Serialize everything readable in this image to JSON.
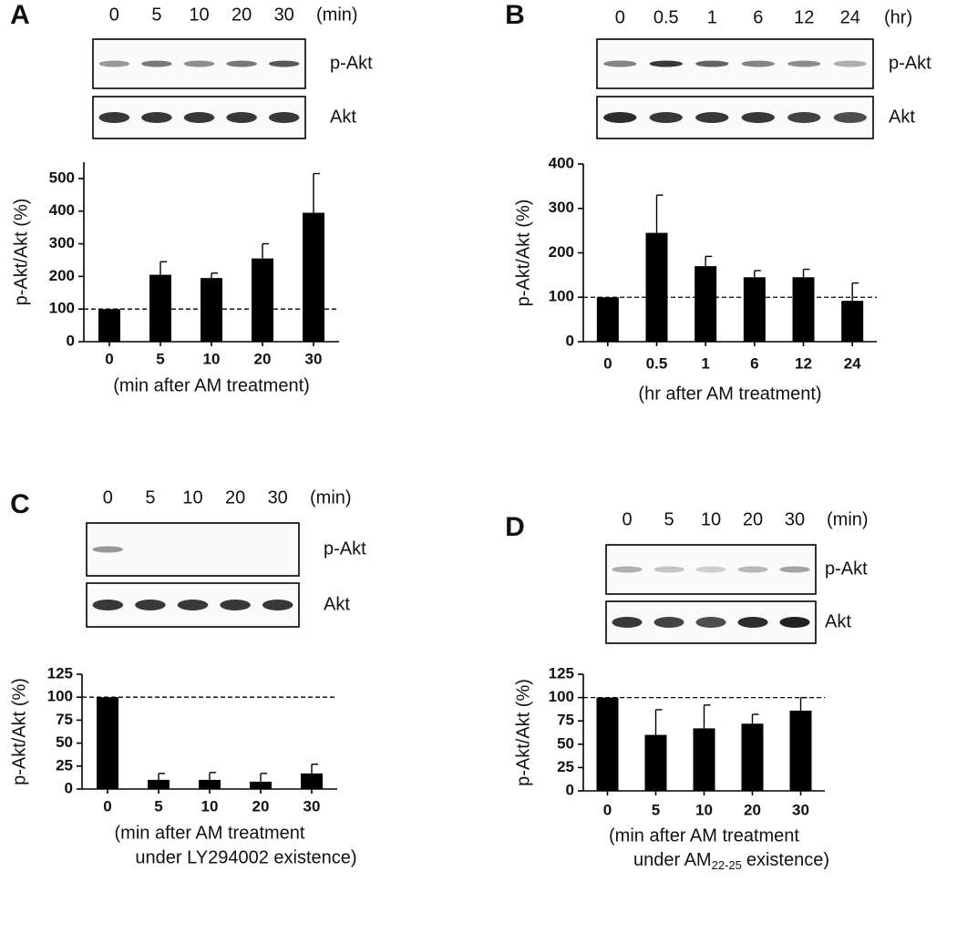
{
  "chart_data": [
    {
      "type": "bar",
      "panel": "A",
      "blot_unit": "(min)",
      "blot_labels": [
        "p-Akt",
        "Akt"
      ],
      "ylabel": "p-Akt/Akt (%)",
      "xlabel_lines": [
        "(min after AM treatment)"
      ],
      "categories": [
        "0",
        "5",
        "10",
        "20",
        "30"
      ],
      "values": [
        100,
        205,
        195,
        255,
        395
      ],
      "errors": [
        null,
        40,
        15,
        45,
        120
      ],
      "color": "#000000",
      "ylim": [
        0,
        550
      ],
      "yticks": [
        0,
        100,
        200,
        300,
        400,
        500
      ],
      "reference_line": 100
    },
    {
      "type": "bar",
      "panel": "B",
      "blot_unit": "(hr)",
      "blot_labels": [
        "p-Akt",
        "Akt"
      ],
      "ylabel": "p-Akt/Akt (%)",
      "xlabel_lines": [
        "(hr after AM treatment)"
      ],
      "categories": [
        "0",
        "0.5",
        "1",
        "6",
        "12",
        "24"
      ],
      "values": [
        100,
        245,
        170,
        145,
        145,
        92
      ],
      "errors": [
        null,
        85,
        22,
        15,
        18,
        40
      ],
      "color": "#000000",
      "ylim": [
        0,
        400
      ],
      "yticks": [
        0,
        100,
        200,
        300,
        400
      ],
      "reference_line": 100
    },
    {
      "type": "bar",
      "panel": "C",
      "blot_unit": "(min)",
      "blot_labels": [
        "p-Akt",
        "Akt"
      ],
      "ylabel": "p-Akt/Akt (%)",
      "xlabel_lines": [
        "(min after AM treatment",
        "under LY294002 existence)"
      ],
      "categories": [
        "0",
        "5",
        "10",
        "20",
        "30"
      ],
      "values": [
        100,
        10,
        10,
        8,
        17
      ],
      "errors": [
        null,
        7,
        8,
        9,
        10
      ],
      "color": "#000000",
      "ylim": [
        0,
        125
      ],
      "yticks": [
        0,
        25,
        50,
        75,
        100,
        125
      ],
      "reference_line": 100
    },
    {
      "type": "bar",
      "panel": "D",
      "blot_unit": "(min)",
      "blot_labels": [
        "p-Akt",
        "Akt"
      ],
      "ylabel": "p-Akt/Akt (%)",
      "xlabel_lines": [
        "(min after AM treatment",
        {
          "text": "under AM",
          "subscript": "22-25",
          "tail": "existence)"
        }
      ],
      "categories": [
        "0",
        "5",
        "10",
        "20",
        "30"
      ],
      "values": [
        100,
        60,
        67,
        72,
        86
      ],
      "errors": [
        null,
        27,
        25,
        10,
        14
      ],
      "color": "#000000",
      "ylim": [
        0,
        125
      ],
      "yticks": [
        0,
        25,
        50,
        75,
        100,
        125
      ],
      "reference_line": 100
    }
  ]
}
